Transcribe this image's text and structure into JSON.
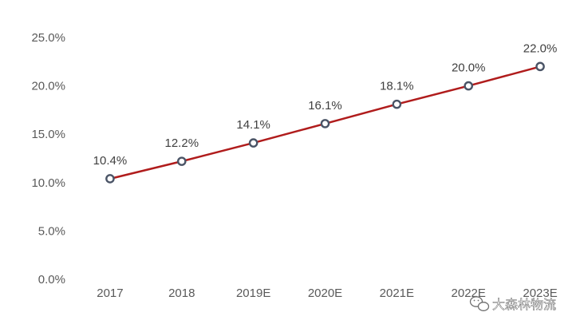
{
  "chart_data": {
    "type": "line",
    "categories": [
      "2017",
      "2018",
      "2019E",
      "2020E",
      "2021E",
      "2022E",
      "2023E"
    ],
    "values": [
      10.4,
      12.2,
      14.1,
      16.1,
      18.1,
      20.0,
      22.0
    ],
    "value_labels": [
      "10.4%",
      "12.2%",
      "14.1%",
      "16.1%",
      "18.1%",
      "20.0%",
      "22.0%"
    ],
    "y_ticks": [
      "0.0%",
      "5.0%",
      "10.0%",
      "15.0%",
      "20.0%",
      "25.0%"
    ],
    "ylim": [
      0,
      25
    ],
    "title": "",
    "xlabel": "",
    "ylabel": "",
    "grid": false,
    "line_color": "#b01c1c",
    "marker_stroke": "#4a5466"
  },
  "watermark": {
    "text": "大森林物流",
    "icon": "wechat-icon"
  }
}
